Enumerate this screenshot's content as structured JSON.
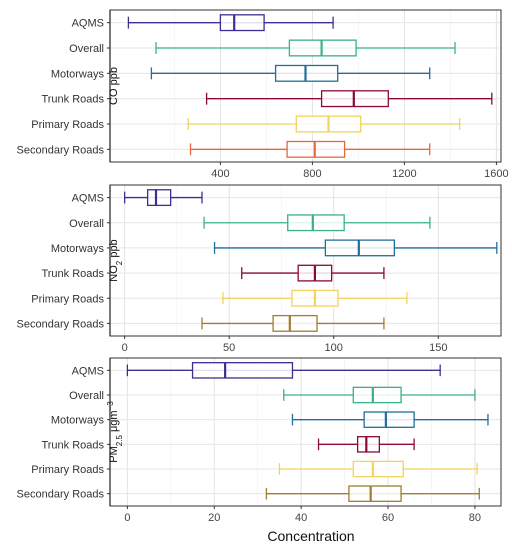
{
  "chart_data": {
    "type": "boxplot",
    "xlabel": "Concentration",
    "categories": [
      "AQMS",
      "Overall",
      "Motorways",
      "Trunk Roads",
      "Primary Roads",
      "Secondary Roads"
    ],
    "panels": [
      {
        "ylabel": "CO ppb",
        "xlim": [
          -80,
          1620
        ],
        "xticks": [
          400,
          800,
          1200,
          1600
        ],
        "reference_line": -80,
        "series": [
          {
            "category": "AQMS",
            "color": "#3d2f8f",
            "min": 0,
            "q1": 400,
            "median": 460,
            "q3": 590,
            "max": 890
          },
          {
            "category": "Overall",
            "color": "#3aaf8c",
            "min": 120,
            "q1": 700,
            "median": 840,
            "q3": 990,
            "max": 1420
          },
          {
            "category": "Motorways",
            "color": "#1f6f9a",
            "min": 100,
            "q1": 640,
            "median": 770,
            "q3": 910,
            "max": 1310
          },
          {
            "category": "Trunk Roads",
            "color": "#8b0a35",
            "min": 340,
            "q1": 840,
            "median": 980,
            "q3": 1130,
            "max": 1580
          },
          {
            "category": "Primary Roads",
            "color": "#f3d35a",
            "min": 260,
            "q1": 730,
            "median": 870,
            "q3": 1010,
            "max": 1440
          },
          {
            "category": "Secondary Roads",
            "color": "#e8673c",
            "min": 270,
            "q1": 690,
            "median": 810,
            "q3": 940,
            "max": 1310
          }
        ]
      },
      {
        "ylabel": "NO",
        "ylabel_sub": "2",
        "ylabel_suffix": " ppb",
        "xlim": [
          -7,
          180
        ],
        "xticks": [
          0,
          50,
          100,
          150
        ],
        "reference_line": -7,
        "series": [
          {
            "category": "AQMS",
            "color": "#3d2f8f",
            "min": 0,
            "q1": 11,
            "median": 15,
            "q3": 22,
            "max": 37
          },
          {
            "category": "Overall",
            "color": "#3aaf8c",
            "min": 38,
            "q1": 78,
            "median": 90,
            "q3": 105,
            "max": 146
          },
          {
            "category": "Motorways",
            "color": "#1f6f9a",
            "min": 43,
            "q1": 96,
            "median": 112,
            "q3": 129,
            "max": 178
          },
          {
            "category": "Trunk Roads",
            "color": "#8b0a35",
            "min": 56,
            "q1": 83,
            "median": 91,
            "q3": 99,
            "max": 124
          },
          {
            "category": "Primary Roads",
            "color": "#f3d35a",
            "min": 47,
            "q1": 80,
            "median": 91,
            "q3": 102,
            "max": 135
          },
          {
            "category": "Secondary Roads",
            "color": "#a07d30",
            "min": 37,
            "q1": 71,
            "median": 79,
            "q3": 92,
            "max": 124
          }
        ]
      },
      {
        "ylabel": "PM",
        "ylabel_sub": "2.5",
        "ylabel_suffix": " μgm",
        "ylabel_sup": "−3",
        "xlim": [
          -4,
          86
        ],
        "xticks": [
          0,
          20,
          40,
          60,
          80
        ],
        "reference_line": -4,
        "series": [
          {
            "category": "AQMS",
            "color": "#3d2f8f",
            "min": 0,
            "q1": 15,
            "median": 22.5,
            "q3": 38,
            "max": 72
          },
          {
            "category": "Overall",
            "color": "#3aaf8c",
            "min": 36,
            "q1": 52,
            "median": 56.5,
            "q3": 63,
            "max": 80
          },
          {
            "category": "Motorways",
            "color": "#1f6f9a",
            "min": 38,
            "q1": 54.5,
            "median": 59.5,
            "q3": 66,
            "max": 83
          },
          {
            "category": "Trunk Roads",
            "color": "#8b0a35",
            "min": 44,
            "q1": 53,
            "median": 55,
            "q3": 58,
            "max": 66
          },
          {
            "category": "Primary Roads",
            "color": "#f3d35a",
            "min": 35,
            "q1": 52,
            "median": 56.5,
            "q3": 63.5,
            "max": 80.5
          },
          {
            "category": "Secondary Roads",
            "color": "#a07d30",
            "min": 32,
            "q1": 51,
            "median": 56,
            "q3": 63,
            "max": 81
          }
        ]
      }
    ]
  }
}
